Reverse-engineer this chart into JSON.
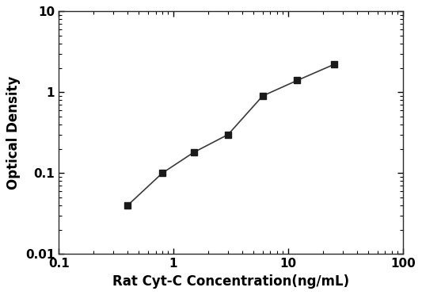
{
  "x": [
    0.4,
    0.8,
    1.5,
    3.0,
    6.0,
    12.0,
    25.0
  ],
  "y": [
    0.04,
    0.1,
    0.18,
    0.3,
    0.9,
    1.4,
    2.2
  ],
  "xlabel": "Rat Cyt-C Concentration(ng/mL)",
  "ylabel": "Optical Density",
  "xlim": [
    0.1,
    100
  ],
  "ylim": [
    0.01,
    10
  ],
  "xtick_locs": [
    0.1,
    1,
    10,
    100
  ],
  "xtick_labels": [
    "0.1",
    "1",
    "10",
    "100"
  ],
  "ytick_locs": [
    0.01,
    0.1,
    1,
    10
  ],
  "ytick_labels": [
    "0.01",
    "0.1",
    "1",
    "10"
  ],
  "marker": "s",
  "marker_color": "#1a1a1a",
  "marker_size": 6,
  "line_color": "#3a3a3a",
  "line_width": 1.2,
  "background_color": "#ffffff",
  "xlabel_fontsize": 12,
  "ylabel_fontsize": 12,
  "tick_fontsize": 11,
  "font_weight": "bold"
}
